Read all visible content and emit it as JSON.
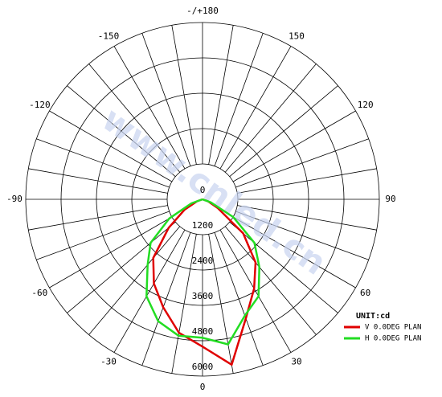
{
  "chart_data": {
    "type": "polar",
    "watermark": "www.cnled.cn",
    "unit": "UNIT:cd",
    "x": [
      -90,
      -80,
      -70,
      -60,
      -50,
      -40,
      -30,
      -20,
      -10,
      0,
      10,
      20,
      30,
      40,
      50,
      60,
      70,
      80,
      90
    ],
    "xticks": [
      -150,
      -120,
      -90,
      -60,
      -30,
      0,
      30,
      60,
      90,
      120,
      150,
      {
        "value": 180,
        "label": "-/+180"
      }
    ],
    "rlim": [
      0,
      6000
    ],
    "rticks": [
      0,
      1200,
      2400,
      3600,
      4800,
      6000
    ],
    "series": [
      {
        "name": "V 0.0DEG PLAN",
        "color": "#e00000",
        "values": [
          0,
          0,
          200,
          700,
          1500,
          2600,
          3300,
          3900,
          4600,
          5000,
          5700,
          4300,
          3500,
          2800,
          1800,
          600,
          200,
          0,
          0
        ]
      },
      {
        "name": "H 0.0DEG PLAN",
        "color": "#22dd22",
        "values": [
          0,
          0,
          400,
          1300,
          2300,
          2900,
          3800,
          4400,
          4700,
          4700,
          5000,
          4200,
          3800,
          3000,
          2300,
          1200,
          300,
          0,
          0
        ]
      }
    ]
  }
}
